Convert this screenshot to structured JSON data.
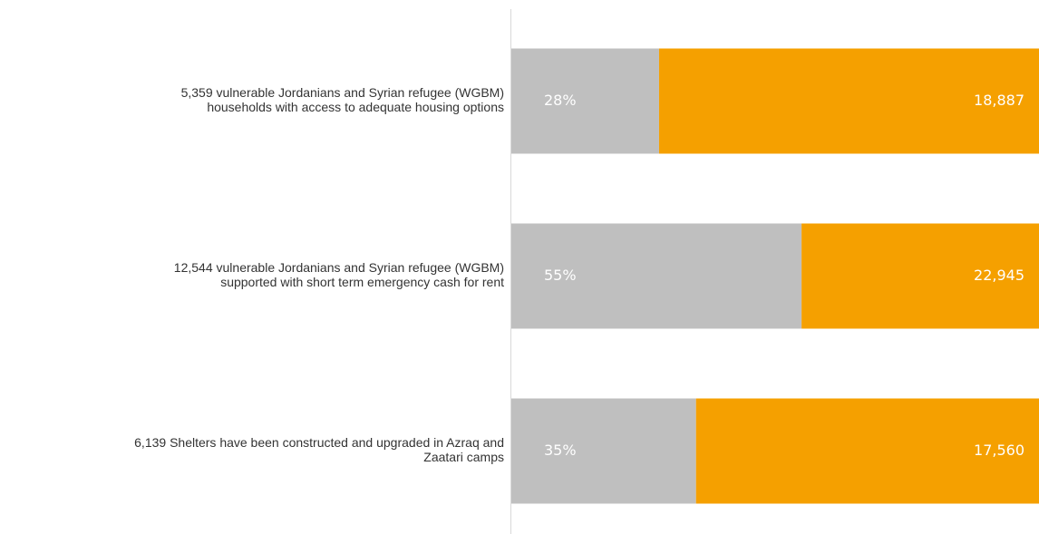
{
  "chart_data": {
    "type": "bar",
    "orientation": "horizontal",
    "stacked": true,
    "categories": [
      [
        "5,359 vulnerable Jordanians and Syrian refugee (WGBM)",
        "households with access to adequate housing options"
      ],
      [
        "12,544 vulnerable Jordanians and Syrian refugee (WGBM)",
        "supported with short term emergency cash for rent"
      ],
      [
        "6,139 Shelters have been constructed and upgraded in Azraq and",
        "Zaatari camps"
      ]
    ],
    "series": [
      {
        "color": "#bfbfbf",
        "values": [
          28,
          55,
          35
        ],
        "value_labels": [
          "28%",
          "55%",
          "35%"
        ]
      },
      {
        "color": "#f5a000",
        "values": [
          72,
          45,
          65
        ]
      }
    ],
    "targets": [
      {
        "value": 18887,
        "label": "18,887"
      },
      {
        "value": 22945,
        "label": "22,945"
      },
      {
        "value": 17560,
        "label": "17,560"
      }
    ],
    "xlim": [
      0,
      100
    ]
  }
}
